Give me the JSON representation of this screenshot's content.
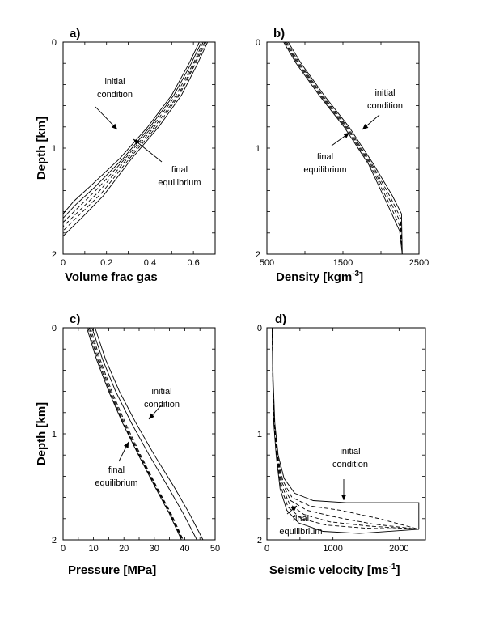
{
  "chart_data": [
    {
      "panel_label": "a)",
      "type": "line",
      "xlabel": "Volume frac gas",
      "ylabel": "Depth [km]",
      "xlim": [
        0,
        0.7
      ],
      "ylim": [
        0,
        2
      ],
      "y_inverted": true,
      "xticks": [
        "0",
        "0.2",
        "0.4",
        "0.6"
      ],
      "yticks": [
        "0",
        "1",
        "2"
      ],
      "annotations": [
        {
          "lines": [
            "initial",
            "condition"
          ]
        },
        {
          "lines": [
            "final",
            "equilibrium"
          ]
        }
      ],
      "series": [
        {
          "style": "solid",
          "points": [
            [
              0.627,
              0
            ],
            [
              0.58,
              0.2
            ],
            [
              0.5,
              0.5
            ],
            [
              0.39,
              0.8
            ],
            [
              0.26,
              1.1
            ],
            [
              0.13,
              1.35
            ],
            [
              0.05,
              1.5
            ],
            [
              0,
              1.62
            ]
          ]
        },
        {
          "style": "solid",
          "points": [
            [
              0.637,
              0
            ],
            [
              0.59,
              0.2
            ],
            [
              0.51,
              0.5
            ],
            [
              0.4,
              0.8
            ],
            [
              0.275,
              1.1
            ],
            [
              0.145,
              1.37
            ],
            [
              0.06,
              1.53
            ],
            [
              0,
              1.66
            ]
          ]
        },
        {
          "style": "dashed",
          "points": [
            [
              0.645,
              0
            ],
            [
              0.6,
              0.2
            ],
            [
              0.52,
              0.5
            ],
            [
              0.41,
              0.8
            ],
            [
              0.285,
              1.1
            ],
            [
              0.155,
              1.39
            ],
            [
              0.07,
              1.56
            ],
            [
              0,
              1.7
            ]
          ]
        },
        {
          "style": "dashed",
          "points": [
            [
              0.652,
              0
            ],
            [
              0.605,
              0.2
            ],
            [
              0.53,
              0.5
            ],
            [
              0.42,
              0.8
            ],
            [
              0.295,
              1.1
            ],
            [
              0.165,
              1.41
            ],
            [
              0.075,
              1.59
            ],
            [
              0,
              1.74
            ]
          ]
        },
        {
          "style": "dashed",
          "points": [
            [
              0.658,
              0
            ],
            [
              0.61,
              0.2
            ],
            [
              0.535,
              0.5
            ],
            [
              0.43,
              0.8
            ],
            [
              0.305,
              1.1
            ],
            [
              0.175,
              1.43
            ],
            [
              0.08,
              1.62
            ],
            [
              0,
              1.78
            ]
          ]
        },
        {
          "style": "solid",
          "points": [
            [
              0.665,
              0
            ],
            [
              0.62,
              0.2
            ],
            [
              0.545,
              0.5
            ],
            [
              0.44,
              0.8
            ],
            [
              0.315,
              1.1
            ],
            [
              0.185,
              1.45
            ],
            [
              0.09,
              1.65
            ],
            [
              0,
              1.83
            ]
          ]
        }
      ]
    },
    {
      "panel_label": "b)",
      "type": "line",
      "xlabel": "Density [kgm",
      "xlabel_sup": "-3",
      "xlabel_end": "]",
      "ylabel": "",
      "xlim": [
        500,
        2500
      ],
      "ylim": [
        0,
        2
      ],
      "y_inverted": true,
      "xticks": [
        "500",
        "1500",
        "2500"
      ],
      "yticks": [
        "0",
        "1",
        "2"
      ],
      "annotations": [
        {
          "lines": [
            "initial",
            "condition"
          ]
        },
        {
          "lines": [
            "final",
            "equilibrium"
          ]
        }
      ],
      "series": [
        {
          "style": "solid",
          "points": [
            [
              780,
              0
            ],
            [
              950,
              0.2
            ],
            [
              1250,
              0.5
            ],
            [
              1580,
              0.8
            ],
            [
              1900,
              1.15
            ],
            [
              2150,
              1.45
            ],
            [
              2270,
              1.62
            ],
            [
              2280,
              2
            ]
          ]
        },
        {
          "style": "dashed",
          "points": [
            [
              760,
              0
            ],
            [
              930,
              0.2
            ],
            [
              1230,
              0.5
            ],
            [
              1560,
              0.8
            ],
            [
              1880,
              1.15
            ],
            [
              2130,
              1.47
            ],
            [
              2260,
              1.66
            ],
            [
              2280,
              2
            ]
          ]
        },
        {
          "style": "dashed",
          "points": [
            [
              745,
              0
            ],
            [
              915,
              0.2
            ],
            [
              1215,
              0.5
            ],
            [
              1545,
              0.8
            ],
            [
              1865,
              1.15
            ],
            [
              2115,
              1.49
            ],
            [
              2255,
              1.7
            ],
            [
              2280,
              2
            ]
          ]
        },
        {
          "style": "dashed",
          "points": [
            [
              735,
              0
            ],
            [
              900,
              0.2
            ],
            [
              1200,
              0.5
            ],
            [
              1530,
              0.8
            ],
            [
              1850,
              1.15
            ],
            [
              2100,
              1.51
            ],
            [
              2250,
              1.74
            ],
            [
              2280,
              2
            ]
          ]
        },
        {
          "style": "solid",
          "points": [
            [
              720,
              0
            ],
            [
              885,
              0.2
            ],
            [
              1185,
              0.5
            ],
            [
              1515,
              0.8
            ],
            [
              1835,
              1.15
            ],
            [
              2085,
              1.53
            ],
            [
              2245,
              1.78
            ],
            [
              2280,
              2
            ]
          ]
        }
      ]
    },
    {
      "panel_label": "c)",
      "type": "line",
      "xlabel": "Pressure [MPa]",
      "ylabel": "Depth [km]",
      "xlim": [
        0,
        50
      ],
      "ylim": [
        0,
        2
      ],
      "y_inverted": true,
      "xticks": [
        "0",
        "10",
        "20",
        "30",
        "40",
        "50"
      ],
      "yticks": [
        "0",
        "1",
        "2"
      ],
      "annotations": [
        {
          "lines": [
            "initial",
            "condition"
          ]
        },
        {
          "lines": [
            "final",
            "equilibrium"
          ]
        }
      ],
      "series": [
        {
          "style": "solid",
          "points": [
            [
              10.5,
              0
            ],
            [
              14,
              0.3
            ],
            [
              18.5,
              0.6
            ],
            [
              24,
              0.9
            ],
            [
              30,
              1.2
            ],
            [
              36.5,
              1.5
            ],
            [
              41.5,
              1.75
            ],
            [
              46,
              2
            ]
          ]
        },
        {
          "style": "solid",
          "points": [
            [
              9.5,
              0
            ],
            [
              13,
              0.3
            ],
            [
              17.3,
              0.6
            ],
            [
              22.5,
              0.9
            ],
            [
              28.3,
              1.2
            ],
            [
              34.5,
              1.5
            ],
            [
              39.5,
              1.75
            ],
            [
              44,
              2
            ]
          ]
        },
        {
          "style": "dashed",
          "points": [
            [
              9.0,
              0
            ],
            [
              12.2,
              0.3
            ],
            [
              16.0,
              0.6
            ],
            [
              20.5,
              0.9
            ],
            [
              25.5,
              1.2
            ],
            [
              30.8,
              1.5
            ],
            [
              35.5,
              1.75
            ],
            [
              39.5,
              2
            ]
          ]
        },
        {
          "style": "dashed",
          "points": [
            [
              8.6,
              0
            ],
            [
              11.8,
              0.3
            ],
            [
              15.6,
              0.6
            ],
            [
              20.1,
              0.9
            ],
            [
              25.2,
              1.2
            ],
            [
              30.6,
              1.5
            ],
            [
              35.3,
              1.75
            ],
            [
              39.3,
              2
            ]
          ]
        },
        {
          "style": "dashed",
          "points": [
            [
              8.2,
              0
            ],
            [
              11.4,
              0.3
            ],
            [
              15.3,
              0.6
            ],
            [
              19.8,
              0.9
            ],
            [
              25.0,
              1.2
            ],
            [
              30.4,
              1.5
            ],
            [
              35.1,
              1.75
            ],
            [
              39.1,
              2
            ]
          ]
        },
        {
          "style": "solid",
          "points": [
            [
              7.8,
              0
            ],
            [
              11.0,
              0.3
            ],
            [
              15.0,
              0.6
            ],
            [
              19.6,
              0.9
            ],
            [
              24.8,
              1.2
            ],
            [
              30.2,
              1.5
            ],
            [
              34.9,
              1.75
            ],
            [
              38.9,
              2
            ]
          ]
        }
      ]
    },
    {
      "panel_label": "d)",
      "type": "line",
      "xlabel": "Seismic velocity [ms",
      "xlabel_sup": "-1",
      "xlabel_end": "]",
      "ylabel": "",
      "xlim": [
        0,
        2400
      ],
      "ylim": [
        0,
        2
      ],
      "y_inverted": true,
      "xticks": [
        "0",
        "1000",
        "2000"
      ],
      "yticks": [
        "0",
        "1",
        "2"
      ],
      "annotations": [
        {
          "lines": [
            "initial",
            "condition"
          ]
        },
        {
          "lines": [
            "final",
            "equilibrium"
          ]
        }
      ],
      "series": [
        {
          "style": "solid",
          "points": [
            [
              80,
              0
            ],
            [
              95,
              0.5
            ],
            [
              120,
              0.9
            ],
            [
              170,
              1.2
            ],
            [
              260,
              1.42
            ],
            [
              420,
              1.56
            ],
            [
              700,
              1.63
            ],
            [
              1200,
              1.65
            ],
            [
              2300,
              1.65
            ],
            [
              2300,
              1.9
            ]
          ]
        },
        {
          "style": "dashed",
          "points": [
            [
              80,
              0
            ],
            [
              93,
              0.5
            ],
            [
              115,
              0.9
            ],
            [
              160,
              1.2
            ],
            [
              240,
              1.44
            ],
            [
              380,
              1.6
            ],
            [
              650,
              1.68
            ],
            [
              1100,
              1.72
            ],
            [
              1700,
              1.8
            ],
            [
              2300,
              1.9
            ]
          ]
        },
        {
          "style": "dashed",
          "points": [
            [
              80,
              0
            ],
            [
              92,
              0.5
            ],
            [
              112,
              0.9
            ],
            [
              155,
              1.2
            ],
            [
              230,
              1.46
            ],
            [
              360,
              1.63
            ],
            [
              600,
              1.72
            ],
            [
              1000,
              1.78
            ],
            [
              1600,
              1.85
            ],
            [
              2300,
              1.9
            ]
          ]
        },
        {
          "style": "dashed",
          "points": [
            [
              80,
              0
            ],
            [
              91,
              0.5
            ],
            [
              110,
              0.9
            ],
            [
              150,
              1.2
            ],
            [
              220,
              1.48
            ],
            [
              340,
              1.66
            ],
            [
              560,
              1.76
            ],
            [
              950,
              1.83
            ],
            [
              1550,
              1.87
            ],
            [
              2300,
              1.9
            ]
          ]
        },
        {
          "style": "dashed",
          "points": [
            [
              80,
              0
            ],
            [
              90,
              0.5
            ],
            [
              107,
              0.9
            ],
            [
              145,
              1.2
            ],
            [
              210,
              1.5
            ],
            [
              320,
              1.69
            ],
            [
              520,
              1.8
            ],
            [
              900,
              1.86
            ],
            [
              1500,
              1.89
            ],
            [
              2300,
              1.9
            ]
          ]
        },
        {
          "style": "solid",
          "points": [
            [
              80,
              0
            ],
            [
              88,
              0.5
            ],
            [
              104,
              0.9
            ],
            [
              140,
              1.2
            ],
            [
              200,
              1.52
            ],
            [
              300,
              1.72
            ],
            [
              480,
              1.84
            ],
            [
              850,
              1.92
            ],
            [
              1400,
              1.94
            ],
            [
              2300,
              1.9
            ]
          ]
        }
      ]
    }
  ]
}
